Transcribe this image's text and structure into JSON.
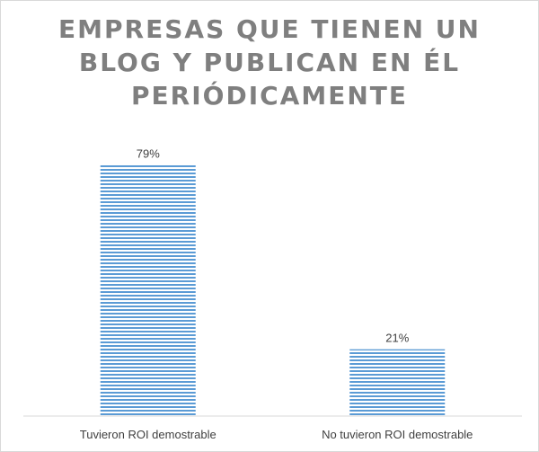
{
  "chart_data": {
    "type": "bar",
    "title_lines": [
      "EMPRESAS QUE TIENEN UN",
      "BLOG Y PUBLICAN EN ÉL",
      "PERIÓDICAMENTE"
    ],
    "categories": [
      "Tuvieron ROI demostrable",
      "No tuvieron ROI demostrable"
    ],
    "values": [
      79,
      21
    ],
    "data_labels": [
      "79%",
      "21%"
    ],
    "ylim": [
      0,
      100
    ],
    "grid": false,
    "legend": "none",
    "bar_color": "#5b9bd5",
    "bar_pattern": "horizontal-stripes"
  }
}
